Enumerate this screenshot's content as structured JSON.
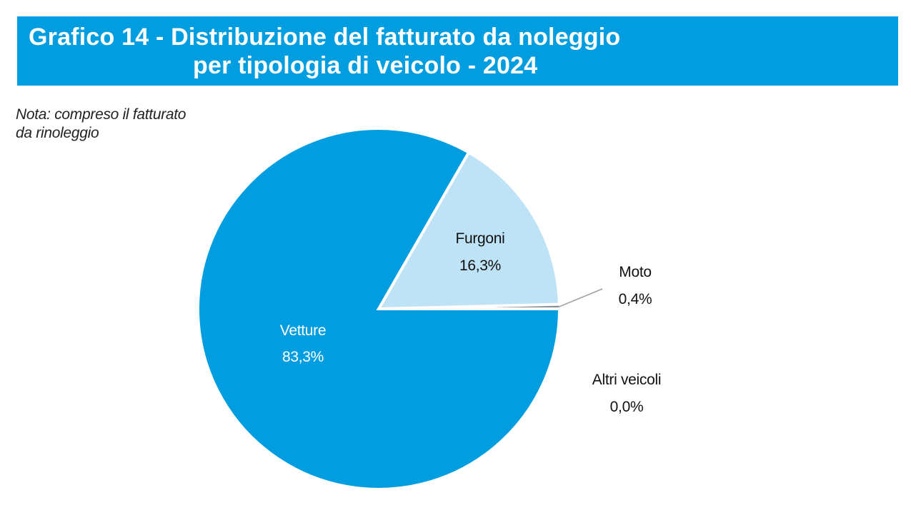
{
  "header": {
    "title_line1": "Grafico 14 - Distribuzione del fatturato da noleggio",
    "title_line2": "per tipologia di veicolo - 2024"
  },
  "note": {
    "line1": "Nota: compreso il fatturato",
    "line2": "da rinoleggio"
  },
  "colors": {
    "header_bg": "#009ee0",
    "vetture": "#009ee0",
    "furgoni": "#bfe3f6",
    "moto": "#8a8f96",
    "altri": "#c9ccd0"
  },
  "chart_data": {
    "type": "pie",
    "title": "Grafico 14 - Distribuzione del fatturato da noleggio per tipologia di veicolo - 2024",
    "slices": [
      {
        "label": "Vetture",
        "value": 83.3,
        "display": "83,3%"
      },
      {
        "label": "Furgoni",
        "value": 16.3,
        "display": "16,3%"
      },
      {
        "label": "Moto",
        "value": 0.4,
        "display": "0,4%"
      },
      {
        "label": "Altri veicoli",
        "value": 0.0,
        "display": "0,0%"
      }
    ]
  }
}
